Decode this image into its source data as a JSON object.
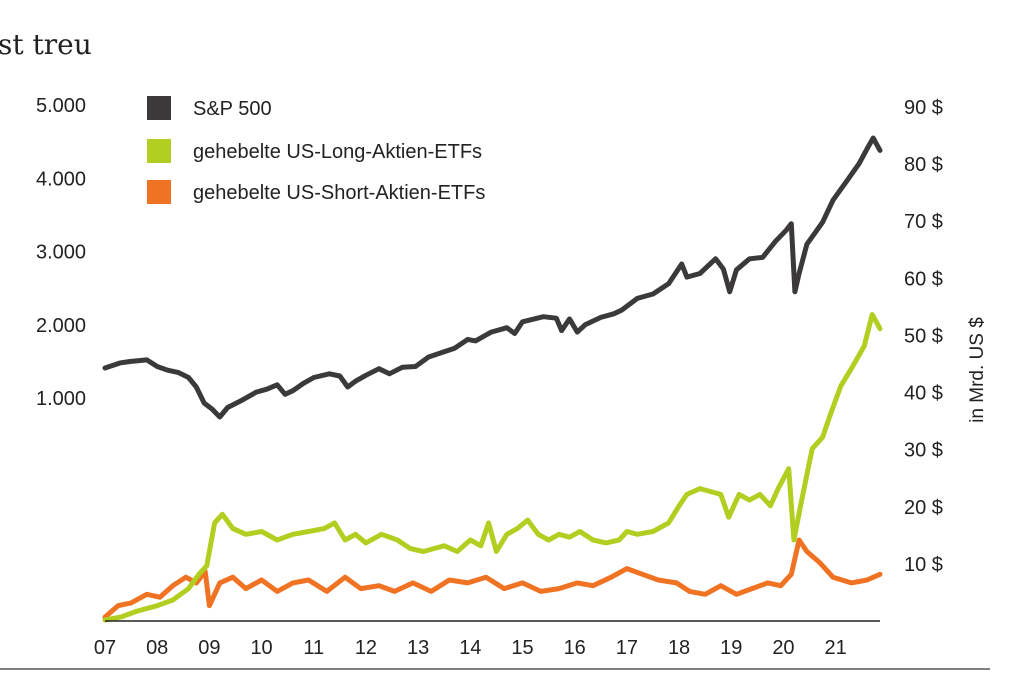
{
  "chart_data": {
    "type": "line",
    "title": "st treu",
    "x_tick_labels": [
      "07",
      "08",
      "09",
      "10",
      "11",
      "12",
      "13",
      "14",
      "15",
      "16",
      "17",
      "18",
      "19",
      "20",
      "21"
    ],
    "x_range": [
      2007.0,
      2021.85
    ],
    "left_axis": {
      "tick_labels": [
        "1.000",
        "2.000",
        "3.000",
        "4.000",
        "5.000"
      ],
      "tick_values": [
        1000,
        2000,
        3000,
        4000,
        5000
      ]
    },
    "right_axis": {
      "label": "in Mrd. US $",
      "tick_labels": [
        "10 $",
        "20 $",
        "30 $",
        "40 $",
        "50 $",
        "60 $",
        "70 $",
        "80 $",
        "90 $"
      ],
      "tick_values": [
        10,
        20,
        30,
        40,
        50,
        60,
        70,
        80,
        90
      ]
    },
    "grid": false,
    "legend_position": "top-left",
    "series": [
      {
        "name": "S&P 500",
        "axis": "left",
        "color": "#3b393a",
        "points": [
          [
            2007.0,
            1410
          ],
          [
            2007.3,
            1480
          ],
          [
            2007.5,
            1500
          ],
          [
            2007.8,
            1520
          ],
          [
            2008.0,
            1430
          ],
          [
            2008.2,
            1380
          ],
          [
            2008.4,
            1350
          ],
          [
            2008.6,
            1280
          ],
          [
            2008.75,
            1150
          ],
          [
            2008.9,
            930
          ],
          [
            2009.05,
            850
          ],
          [
            2009.2,
            740
          ],
          [
            2009.35,
            870
          ],
          [
            2009.6,
            960
          ],
          [
            2009.9,
            1080
          ],
          [
            2010.1,
            1120
          ],
          [
            2010.3,
            1180
          ],
          [
            2010.45,
            1050
          ],
          [
            2010.6,
            1100
          ],
          [
            2010.8,
            1200
          ],
          [
            2011.0,
            1280
          ],
          [
            2011.3,
            1330
          ],
          [
            2011.5,
            1300
          ],
          [
            2011.65,
            1150
          ],
          [
            2011.8,
            1230
          ],
          [
            2012.0,
            1310
          ],
          [
            2012.25,
            1400
          ],
          [
            2012.45,
            1330
          ],
          [
            2012.7,
            1420
          ],
          [
            2012.95,
            1430
          ],
          [
            2013.2,
            1560
          ],
          [
            2013.45,
            1620
          ],
          [
            2013.7,
            1680
          ],
          [
            2013.95,
            1800
          ],
          [
            2014.1,
            1780
          ],
          [
            2014.4,
            1900
          ],
          [
            2014.7,
            1960
          ],
          [
            2014.85,
            1880
          ],
          [
            2015.0,
            2040
          ],
          [
            2015.4,
            2110
          ],
          [
            2015.65,
            2090
          ],
          [
            2015.75,
            1920
          ],
          [
            2015.9,
            2080
          ],
          [
            2016.05,
            1900
          ],
          [
            2016.2,
            2000
          ],
          [
            2016.5,
            2100
          ],
          [
            2016.75,
            2150
          ],
          [
            2016.9,
            2200
          ],
          [
            2017.2,
            2360
          ],
          [
            2017.5,
            2420
          ],
          [
            2017.8,
            2560
          ],
          [
            2018.05,
            2830
          ],
          [
            2018.15,
            2650
          ],
          [
            2018.4,
            2700
          ],
          [
            2018.7,
            2900
          ],
          [
            2018.85,
            2760
          ],
          [
            2018.97,
            2450
          ],
          [
            2019.1,
            2750
          ],
          [
            2019.35,
            2900
          ],
          [
            2019.6,
            2920
          ],
          [
            2019.85,
            3140
          ],
          [
            2020.05,
            3290
          ],
          [
            2020.15,
            3380
          ],
          [
            2020.22,
            2450
          ],
          [
            2020.3,
            2700
          ],
          [
            2020.45,
            3100
          ],
          [
            2020.6,
            3250
          ],
          [
            2020.75,
            3400
          ],
          [
            2020.95,
            3700
          ],
          [
            2021.2,
            3950
          ],
          [
            2021.45,
            4200
          ],
          [
            2021.6,
            4400
          ],
          [
            2021.72,
            4550
          ],
          [
            2021.85,
            4380
          ]
        ]
      },
      {
        "name": "gehebelte US-Long-Aktien-ETFs",
        "axis": "right",
        "color": "#b1cf20",
        "points": [
          [
            2007.0,
            0
          ],
          [
            2007.3,
            0.5
          ],
          [
            2007.6,
            1.5
          ],
          [
            2008.0,
            2.5
          ],
          [
            2008.3,
            3.5
          ],
          [
            2008.6,
            5.5
          ],
          [
            2008.8,
            8
          ],
          [
            2008.95,
            9.5
          ],
          [
            2009.0,
            12
          ],
          [
            2009.1,
            17
          ],
          [
            2009.25,
            18.5
          ],
          [
            2009.45,
            16
          ],
          [
            2009.7,
            15
          ],
          [
            2010.0,
            15.5
          ],
          [
            2010.3,
            14
          ],
          [
            2010.6,
            15
          ],
          [
            2010.9,
            15.5
          ],
          [
            2011.2,
            16
          ],
          [
            2011.4,
            17
          ],
          [
            2011.6,
            14
          ],
          [
            2011.8,
            15
          ],
          [
            2012.0,
            13.5
          ],
          [
            2012.3,
            15
          ],
          [
            2012.6,
            14
          ],
          [
            2012.85,
            12.5
          ],
          [
            2013.1,
            12
          ],
          [
            2013.3,
            12.5
          ],
          [
            2013.5,
            13
          ],
          [
            2013.75,
            12
          ],
          [
            2014.0,
            14
          ],
          [
            2014.2,
            13
          ],
          [
            2014.35,
            17
          ],
          [
            2014.5,
            12
          ],
          [
            2014.7,
            15
          ],
          [
            2014.9,
            16
          ],
          [
            2015.1,
            17.5
          ],
          [
            2015.3,
            15
          ],
          [
            2015.5,
            14
          ],
          [
            2015.7,
            15
          ],
          [
            2015.9,
            14.5
          ],
          [
            2016.1,
            15.5
          ],
          [
            2016.35,
            14
          ],
          [
            2016.6,
            13.5
          ],
          [
            2016.85,
            14
          ],
          [
            2017.0,
            15.5
          ],
          [
            2017.2,
            15
          ],
          [
            2017.5,
            15.5
          ],
          [
            2017.8,
            17
          ],
          [
            2018.0,
            20
          ],
          [
            2018.15,
            22
          ],
          [
            2018.4,
            23
          ],
          [
            2018.6,
            22.5
          ],
          [
            2018.8,
            22
          ],
          [
            2018.95,
            18
          ],
          [
            2019.15,
            22
          ],
          [
            2019.35,
            21
          ],
          [
            2019.55,
            22
          ],
          [
            2019.75,
            20
          ],
          [
            2019.9,
            23
          ],
          [
            2020.1,
            26.5
          ],
          [
            2020.2,
            14
          ],
          [
            2020.35,
            21
          ],
          [
            2020.55,
            30
          ],
          [
            2020.75,
            32
          ],
          [
            2020.9,
            36
          ],
          [
            2021.1,
            41
          ],
          [
            2021.3,
            44
          ],
          [
            2021.55,
            48
          ],
          [
            2021.7,
            53.5
          ],
          [
            2021.85,
            51
          ]
        ]
      },
      {
        "name": "gehebelte US-Short-Aktien-ETFs",
        "axis": "right",
        "color": "#f07324",
        "points": [
          [
            2007.0,
            0.5
          ],
          [
            2007.25,
            2.5
          ],
          [
            2007.5,
            3
          ],
          [
            2007.8,
            4.5
          ],
          [
            2008.05,
            4
          ],
          [
            2008.3,
            6
          ],
          [
            2008.55,
            7.5
          ],
          [
            2008.75,
            6.5
          ],
          [
            2008.92,
            8.5
          ],
          [
            2009.0,
            2.5
          ],
          [
            2009.2,
            6.5
          ],
          [
            2009.45,
            7.5
          ],
          [
            2009.7,
            5.5
          ],
          [
            2010.0,
            7
          ],
          [
            2010.3,
            5
          ],
          [
            2010.6,
            6.5
          ],
          [
            2010.9,
            7
          ],
          [
            2011.25,
            5
          ],
          [
            2011.6,
            7.5
          ],
          [
            2011.9,
            5.5
          ],
          [
            2012.25,
            6
          ],
          [
            2012.55,
            5
          ],
          [
            2012.9,
            6.5
          ],
          [
            2013.25,
            5
          ],
          [
            2013.6,
            7
          ],
          [
            2013.95,
            6.5
          ],
          [
            2014.3,
            7.5
          ],
          [
            2014.65,
            5.5
          ],
          [
            2015.0,
            6.5
          ],
          [
            2015.35,
            5
          ],
          [
            2015.7,
            5.5
          ],
          [
            2016.05,
            6.5
          ],
          [
            2016.35,
            6
          ],
          [
            2016.7,
            7.5
          ],
          [
            2017.0,
            9
          ],
          [
            2017.3,
            8
          ],
          [
            2017.6,
            7
          ],
          [
            2017.95,
            6.5
          ],
          [
            2018.2,
            5
          ],
          [
            2018.5,
            4.5
          ],
          [
            2018.8,
            6
          ],
          [
            2019.1,
            4.5
          ],
          [
            2019.4,
            5.5
          ],
          [
            2019.7,
            6.5
          ],
          [
            2019.95,
            6
          ],
          [
            2020.15,
            8
          ],
          [
            2020.3,
            14
          ],
          [
            2020.45,
            12
          ],
          [
            2020.7,
            10
          ],
          [
            2020.95,
            7.5
          ],
          [
            2021.3,
            6.5
          ],
          [
            2021.6,
            7
          ],
          [
            2021.85,
            8
          ]
        ]
      }
    ]
  }
}
